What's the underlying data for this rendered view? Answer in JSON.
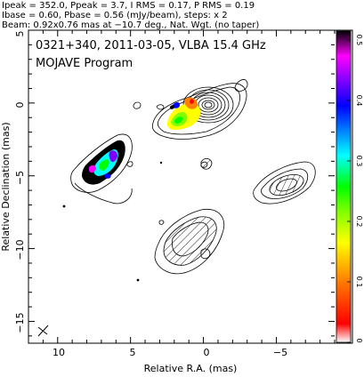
{
  "header": {
    "line1": "Ipeak = 352.0, Ppeak = 3.7, I RMS = 0.17, P RMS = 0.19",
    "line2": "Ibase = 0.60, Pbase = 0.56 (mJy/beam), steps: x 2",
    "line3": "Beam: 0.92x0.76 mas at −10.7 deg., Nat. Wgt. (no taper)"
  },
  "plot": {
    "title_line1": "0321+340, 2011-03-05, VLBA 15.4 GHz",
    "title_line2": "MOJAVE Program",
    "xlabel": "Relative R.A. (mas)",
    "ylabel": "Relative Declination (mas)",
    "x_ticks": [
      "10",
      "5",
      "0",
      "−5"
    ],
    "y_ticks": [
      "5",
      "0",
      "−5",
      "−10",
      "−15"
    ],
    "xlim": [
      12,
      -9
    ],
    "ylim": [
      -16.5,
      5
    ]
  },
  "colorbar": {
    "ticks": [
      "0.5",
      "0.4",
      "0.3",
      "0.2",
      "0.1",
      "0"
    ],
    "range": [
      0,
      0.5
    ],
    "colors": [
      "#ffffff",
      "#ff0000",
      "#ff8000",
      "#ffff00",
      "#80ff00",
      "#00ff00",
      "#00ffff",
      "#0080ff",
      "#0000ff",
      "#8000ff",
      "#ff00ff",
      "#000000"
    ]
  }
}
